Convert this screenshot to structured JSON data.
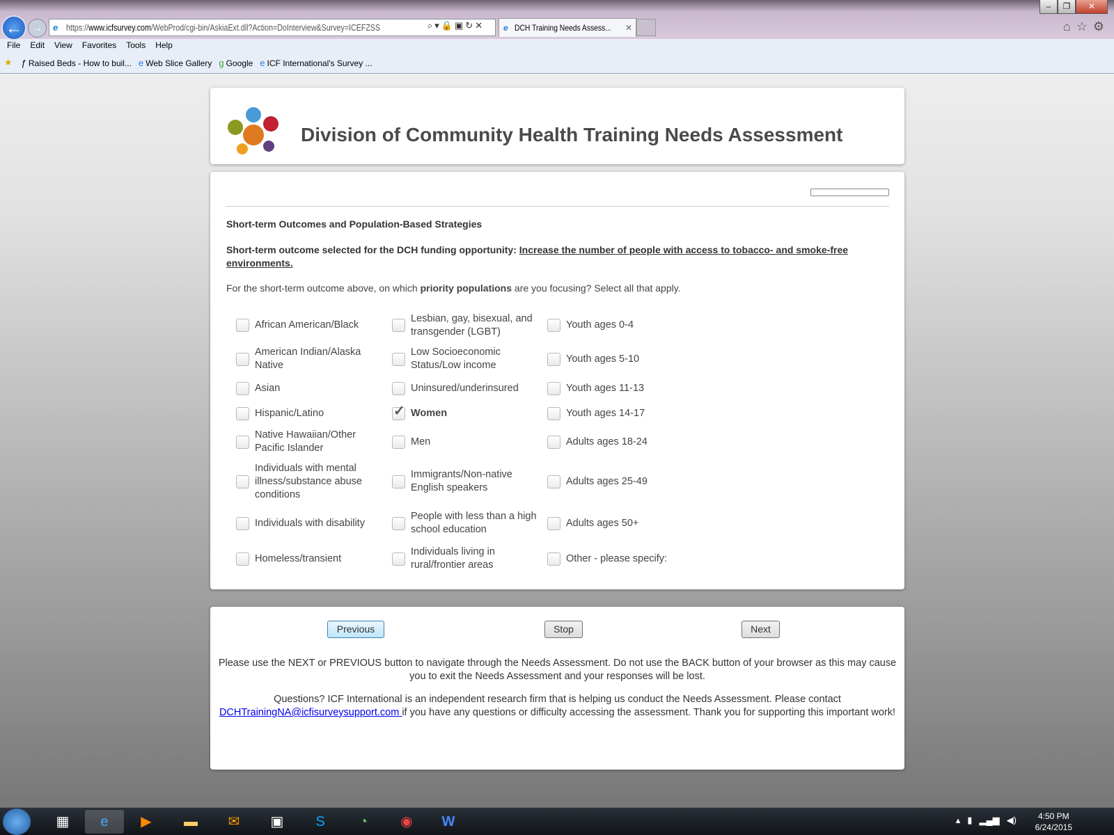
{
  "browser": {
    "url_prefix": "https://",
    "url_host": "www.icfsurvey.com",
    "url_path": "/WebProd/cgi-bin/AskiaExt.dll?Action=DoInterview&Survey=ICEFZSS",
    "tab_title": "DCH Training Needs Assess...",
    "menu": [
      "File",
      "Edit",
      "View",
      "Favorites",
      "Tools",
      "Help"
    ],
    "favorites": [
      "Raised Beds - How to buil...",
      "Web Slice Gallery",
      "Google",
      "ICF International's Survey ..."
    ]
  },
  "header": {
    "title": "Division of Community Health Training Needs Assessment"
  },
  "main": {
    "progress_percent": 0,
    "section_title": "Short-term Outcomes and Population-Based Strategies",
    "outcome_label": "Short-term outcome selected for the DCH funding opportunity: ",
    "outcome_value": "Increase the number of people with access to tobacco- and smoke-free environments.",
    "question_pre": "For the short-term outcome above, on which ",
    "question_bold": "priority populations",
    "question_post": " are you focusing? Select all that apply.",
    "options": [
      {
        "label": "African American/Black",
        "checked": false
      },
      {
        "label": "American Indian/Alaska Native",
        "checked": false
      },
      {
        "label": "Asian",
        "checked": false
      },
      {
        "label": "Hispanic/Latino",
        "checked": false
      },
      {
        "label": "Native Hawaiian/Other Pacific Islander",
        "checked": false
      },
      {
        "label": "Individuals with mental illness/substance abuse conditions",
        "checked": false
      },
      {
        "label": "Individuals with disability",
        "checked": false
      },
      {
        "label": "Homeless/transient",
        "checked": false
      },
      {
        "label": "Lesbian, gay, bisexual, and transgender (LGBT)",
        "checked": false
      },
      {
        "label": "Low Socioeconomic Status/Low income",
        "checked": false
      },
      {
        "label": "Uninsured/underinsured",
        "checked": false
      },
      {
        "label": "Women",
        "checked": true
      },
      {
        "label": "Men",
        "checked": false
      },
      {
        "label": "Immigrants/Non-native English speakers",
        "checked": false
      },
      {
        "label": "People with less than a high school education",
        "checked": false
      },
      {
        "label": "Individuals living in rural/frontier areas",
        "checked": false
      },
      {
        "label": "Youth ages 0-4",
        "checked": false
      },
      {
        "label": "Youth ages 5-10",
        "checked": false
      },
      {
        "label": "Youth ages 11-13",
        "checked": false
      },
      {
        "label": "Youth ages 14-17",
        "checked": false
      },
      {
        "label": "Adults ages 18-24",
        "checked": false
      },
      {
        "label": "Adults ages 25-49",
        "checked": false
      },
      {
        "label": "Adults ages 50+",
        "checked": false
      },
      {
        "label": "Other - please specify:",
        "checked": false
      }
    ]
  },
  "nav": {
    "previous": "Previous",
    "stop": "Stop",
    "next": "Next",
    "notice": "Please use the NEXT or PREVIOUS button to navigate through the Needs Assessment. Do not use the BACK button of your browser as this may cause you to exit the Needs Assessment and your responses will be lost.",
    "questions_pre": "Questions? ICF International is an independent research firm that is helping us conduct the Needs Assessment. Please contact ",
    "email": "DCHTrainingNA@icfisurveysupport.com ",
    "questions_post": "if you have any questions or difficulty accessing the assessment. Thank you for supporting this important work!"
  },
  "taskbar": {
    "time": "4:50 PM",
    "date": "6/24/2015"
  }
}
